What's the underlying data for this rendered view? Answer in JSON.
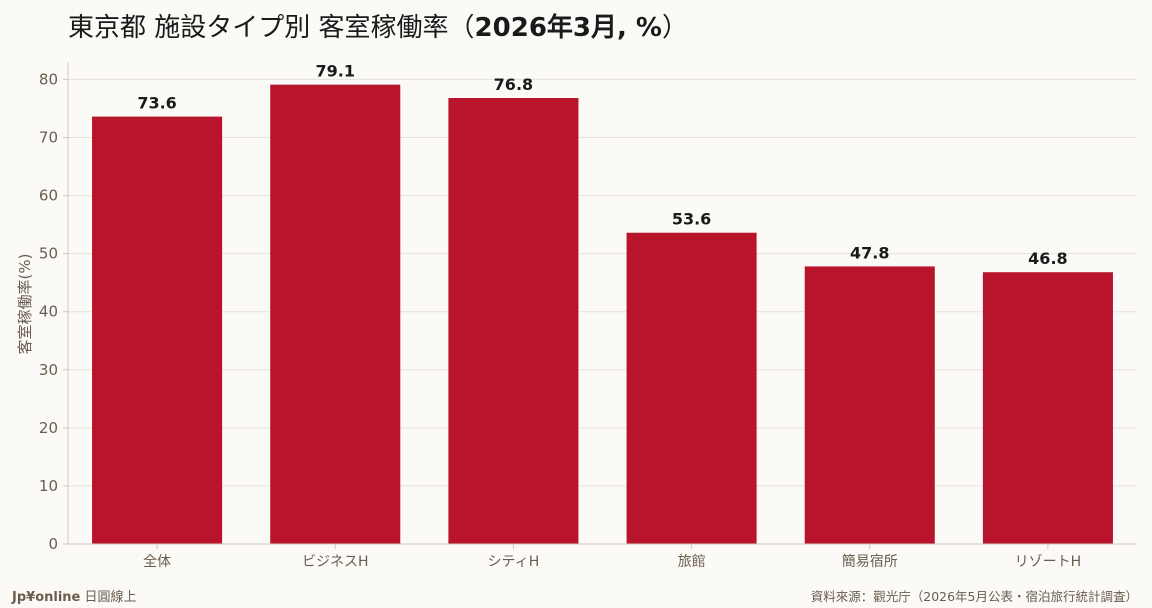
{
  "title": {
    "main": "東京都 施設タイプ別 客室稼働率",
    "open": "（",
    "bold": "2026年3月, %",
    "close": "）"
  },
  "brand": {
    "name": "Jp¥online",
    "tagline": "日圓線上"
  },
  "source": "資料來源：觀光庁（2026年5月公表・宿泊旅行統計調査）",
  "colors": {
    "bar": "#b8152c",
    "grid": "#e6e2da",
    "axis": "#cfc9bf",
    "tick_text": "#6b5d4d",
    "label_text": "#1a1a1a"
  },
  "chart_data": {
    "type": "bar",
    "categories": [
      "全体",
      "ビジネスH",
      "シティH",
      "旅館",
      "簡易宿所",
      "リゾートH"
    ],
    "values": [
      73.6,
      79.1,
      76.8,
      53.6,
      47.8,
      46.8
    ],
    "data_labels": [
      "73.6",
      "79.1",
      "76.8",
      "53.6",
      "47.8",
      "46.8"
    ],
    "xlabel": "",
    "ylabel": "客室稼働率(%)",
    "ylim": [
      0,
      83
    ],
    "yticks": [
      0,
      10,
      20,
      30,
      40,
      50,
      60,
      70,
      80
    ],
    "grid": true,
    "legend": "none"
  }
}
